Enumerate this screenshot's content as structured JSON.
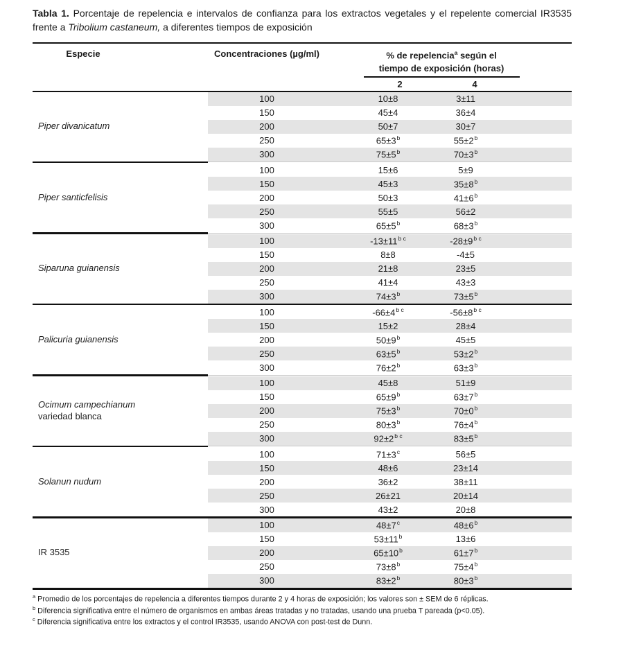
{
  "title": {
    "label": "Tabla 1.",
    "text_before_italic": "Porcentaje de repelencia e intervalos de confianza para los extractos vegetales y el repelente comercial IR3535 frente a",
    "italic": "Tribolium castaneum,",
    "text_after_italic": "a diferentes tiempos de exposición"
  },
  "table": {
    "headers": {
      "species": "Especie",
      "concentration": "Concentraciones (µg/ml)",
      "repellency_pre": "% de repelencia",
      "repellency_sup": "a",
      "repellency_post": " según el",
      "repellency_line2": "tiempo de exposición (horas)",
      "time_cols": [
        "2",
        "4"
      ]
    },
    "sections": [
      {
        "species_lines": [
          {
            "text": "Piper divanicatum",
            "italic": true
          }
        ],
        "divider_top": null,
        "rows": [
          {
            "conc": "100",
            "h2": {
              "v": "10±8",
              "s": ""
            },
            "h4": {
              "v": "3±11",
              "s": ""
            }
          },
          {
            "conc": "150",
            "h2": {
              "v": "45±4",
              "s": ""
            },
            "h4": {
              "v": "36±4",
              "s": ""
            }
          },
          {
            "conc": "200",
            "h2": {
              "v": "50±7",
              "s": ""
            },
            "h4": {
              "v": "30±7",
              "s": ""
            }
          },
          {
            "conc": "250",
            "h2": {
              "v": "65±3",
              "s": "b"
            },
            "h4": {
              "v": "55±2",
              "s": "b"
            }
          },
          {
            "conc": "300",
            "h2": {
              "v": "75±5",
              "s": "b"
            },
            "h4": {
              "v": "70±3",
              "s": "b"
            }
          }
        ]
      },
      {
        "species_lines": [
          {
            "text": "Piper santicfelisis",
            "italic": true
          }
        ],
        "divider_top": "partial",
        "rows": [
          {
            "conc": "100",
            "h2": {
              "v": "15±6",
              "s": ""
            },
            "h4": {
              "v": "5±9",
              "s": ""
            }
          },
          {
            "conc": "150",
            "h2": {
              "v": "45±3",
              "s": ""
            },
            "h4": {
              "v": "35±8",
              "s": "b"
            }
          },
          {
            "conc": "200",
            "h2": {
              "v": "50±3",
              "s": ""
            },
            "h4": {
              "v": "41±6",
              "s": "b"
            }
          },
          {
            "conc": "250",
            "h2": {
              "v": "55±5",
              "s": ""
            },
            "h4": {
              "v": "56±2",
              "s": ""
            }
          },
          {
            "conc": "300",
            "h2": {
              "v": "65±5",
              "s": "b"
            },
            "h4": {
              "v": "68±3",
              "s": "b"
            }
          }
        ]
      },
      {
        "species_lines": [
          {
            "text": "Siparuna guianensis",
            "italic": true
          }
        ],
        "divider_top": "partial",
        "rows": [
          {
            "conc": "100",
            "h2": {
              "v": "-13±11",
              "s": "b c"
            },
            "h4": {
              "v": "-28±9",
              "s": "b c"
            }
          },
          {
            "conc": "150",
            "h2": {
              "v": "8±8",
              "s": ""
            },
            "h4": {
              "v": "-4±5",
              "s": ""
            }
          },
          {
            "conc": "200",
            "h2": {
              "v": "21±8",
              "s": ""
            },
            "h4": {
              "v": "23±5",
              "s": ""
            }
          },
          {
            "conc": "250",
            "h2": {
              "v": "41±4",
              "s": ""
            },
            "h4": {
              "v": "43±3",
              "s": ""
            }
          },
          {
            "conc": "300",
            "h2": {
              "v": "74±3",
              "s": "b"
            },
            "h4": {
              "v": "73±5",
              "s": "b"
            }
          }
        ]
      },
      {
        "species_lines": [
          {
            "text": "Palicuria guianensis",
            "italic": true
          }
        ],
        "divider_top": "full",
        "rows": [
          {
            "conc": "100",
            "h2": {
              "v": "-66±4",
              "s": "b c"
            },
            "h4": {
              "v": "-56±8",
              "s": "b c"
            }
          },
          {
            "conc": "150",
            "h2": {
              "v": "15±2",
              "s": ""
            },
            "h4": {
              "v": "28±4",
              "s": ""
            }
          },
          {
            "conc": "200",
            "h2": {
              "v": "50±9",
              "s": "b"
            },
            "h4": {
              "v": "45±5",
              "s": ""
            }
          },
          {
            "conc": "250",
            "h2": {
              "v": "63±5",
              "s": "b"
            },
            "h4": {
              "v": "53±2",
              "s": "b"
            }
          },
          {
            "conc": "300",
            "h2": {
              "v": "76±2",
              "s": "b"
            },
            "h4": {
              "v": "63±3",
              "s": "b"
            }
          }
        ]
      },
      {
        "species_lines": [
          {
            "text": "Ocimum campechianum",
            "italic": true
          },
          {
            "text": "variedad blanca",
            "italic": false
          }
        ],
        "divider_top": "partial",
        "rows": [
          {
            "conc": "100",
            "h2": {
              "v": "45±8",
              "s": ""
            },
            "h4": {
              "v": "51±9",
              "s": ""
            }
          },
          {
            "conc": "150",
            "h2": {
              "v": "65±9",
              "s": "b"
            },
            "h4": {
              "v": "63±7",
              "s": "b"
            }
          },
          {
            "conc": "200",
            "h2": {
              "v": "75±3",
              "s": "b"
            },
            "h4": {
              "v": "70±0",
              "s": "b"
            }
          },
          {
            "conc": "250",
            "h2": {
              "v": "80±3",
              "s": "b"
            },
            "h4": {
              "v": "76±4",
              "s": "b"
            }
          },
          {
            "conc": "300",
            "h2": {
              "v": "92±2",
              "s": "b c"
            },
            "h4": {
              "v": "83±5",
              "s": "b"
            }
          }
        ]
      },
      {
        "species_lines": [
          {
            "text": "Solanun nudum",
            "italic": true
          }
        ],
        "divider_top": "partial",
        "rows": [
          {
            "conc": "100",
            "h2": {
              "v": "71±3",
              "s": "c"
            },
            "h4": {
              "v": "56±5",
              "s": ""
            }
          },
          {
            "conc": "150",
            "h2": {
              "v": "48±6",
              "s": ""
            },
            "h4": {
              "v": "23±14",
              "s": ""
            }
          },
          {
            "conc": "200",
            "h2": {
              "v": "36±2",
              "s": ""
            },
            "h4": {
              "v": "38±11",
              "s": ""
            }
          },
          {
            "conc": "250",
            "h2": {
              "v": "26±21",
              "s": ""
            },
            "h4": {
              "v": "20±14",
              "s": ""
            }
          },
          {
            "conc": "300",
            "h2": {
              "v": "43±2",
              "s": ""
            },
            "h4": {
              "v": "20±8",
              "s": ""
            }
          }
        ]
      },
      {
        "species_lines": [
          {
            "text": "IR 3535",
            "italic": false
          }
        ],
        "divider_top": "full",
        "rows": [
          {
            "conc": "100",
            "h2": {
              "v": "48±7",
              "s": "c"
            },
            "h4": {
              "v": "48±6",
              "s": "b"
            }
          },
          {
            "conc": "150",
            "h2": {
              "v": "53±11",
              "s": "b"
            },
            "h4": {
              "v": "13±6",
              "s": ""
            }
          },
          {
            "conc": "200",
            "h2": {
              "v": "65±10",
              "s": "b"
            },
            "h4": {
              "v": "61±7",
              "s": "b"
            }
          },
          {
            "conc": "250",
            "h2": {
              "v": "73±8",
              "s": "b"
            },
            "h4": {
              "v": "75±4",
              "s": "b"
            }
          },
          {
            "conc": "300",
            "h2": {
              "v": "83±2",
              "s": "b"
            },
            "h4": {
              "v": "80±3",
              "s": "b"
            }
          }
        ]
      }
    ]
  },
  "footnotes": [
    {
      "sup": "a",
      "text": "Promedio de los porcentajes de repelencia a diferentes tiempos durante 2 y 4 horas de exposición; los valores son ± SEM de 6 réplicas."
    },
    {
      "sup": "b",
      "text": "Diferencia significativa entre el número de organismos en ambas áreas tratadas y no tratadas, usando una prueba T pareada (p<0.05)."
    },
    {
      "sup": "c",
      "text": "Diferencia significativa entre los extractos y el control IR3535, usando ANOVA con post-test de Dunn."
    }
  ],
  "colors": {
    "shade": "#e4e4e4",
    "rule_heavy": "#111111",
    "rule_thin": "#c8c8c8",
    "text": "#1c1c1c"
  }
}
